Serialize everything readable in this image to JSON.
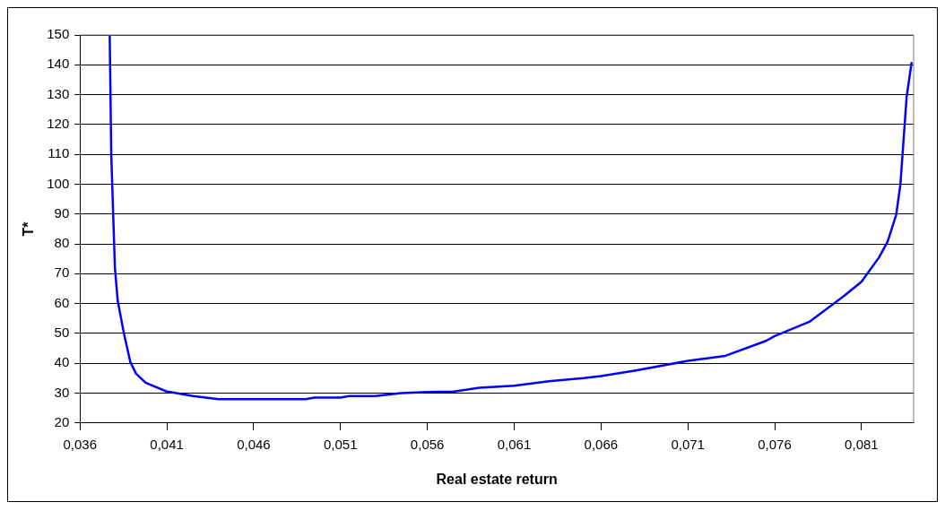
{
  "chart_data": {
    "type": "line",
    "xlabel": "Real estate return",
    "ylabel": "T*",
    "x": [
      0.03771,
      0.0378,
      0.03801,
      0.03817,
      0.03853,
      0.0389,
      0.03923,
      0.03978,
      0.04096,
      0.04251,
      0.04397,
      0.049,
      0.0495,
      0.051,
      0.0515,
      0.053,
      0.0545,
      0.056,
      0.0575,
      0.059,
      0.061,
      0.063,
      0.065,
      0.066,
      0.068,
      0.071,
      0.07316,
      0.0755,
      0.076,
      0.078,
      0.08,
      0.081,
      0.082,
      0.0825,
      0.083,
      0.08324,
      0.0836,
      0.08388
    ],
    "series": [
      {
        "color": "#0000ff",
        "values": [
          150,
          110,
          72,
          61,
          50,
          40.4,
          36.5,
          33.5,
          30.6,
          29,
          28,
          28,
          28.5,
          28.5,
          29,
          29,
          30,
          30.4,
          30.5,
          31.8,
          32.5,
          34,
          35,
          35.7,
          37.6,
          40.8,
          42.5,
          47.5,
          49.1,
          53.9,
          62.6,
          67.3,
          75.4,
          80.7,
          89.8,
          100,
          129.4,
          140.6
        ]
      }
    ],
    "xlim": [
      0.036,
      0.084
    ],
    "xticks": [
      {
        "value": 0.036,
        "label": "0,036"
      },
      {
        "value": 0.041,
        "label": "0,041"
      },
      {
        "value": 0.046,
        "label": "0,046"
      },
      {
        "value": 0.051,
        "label": "0,051"
      },
      {
        "value": 0.056,
        "label": "0,056"
      },
      {
        "value": 0.061,
        "label": "0,061"
      },
      {
        "value": 0.066,
        "label": "0,066"
      },
      {
        "value": 0.071,
        "label": "0,071"
      },
      {
        "value": 0.076,
        "label": "0,076"
      },
      {
        "value": 0.081,
        "label": "0,081"
      }
    ],
    "ylim": [
      20,
      150
    ],
    "yticks": [
      20,
      30,
      40,
      50,
      60,
      70,
      80,
      90,
      100,
      110,
      120,
      130,
      140,
      150
    ],
    "grid": "y",
    "legend": false,
    "marker": "none",
    "line_style": "solid"
  }
}
